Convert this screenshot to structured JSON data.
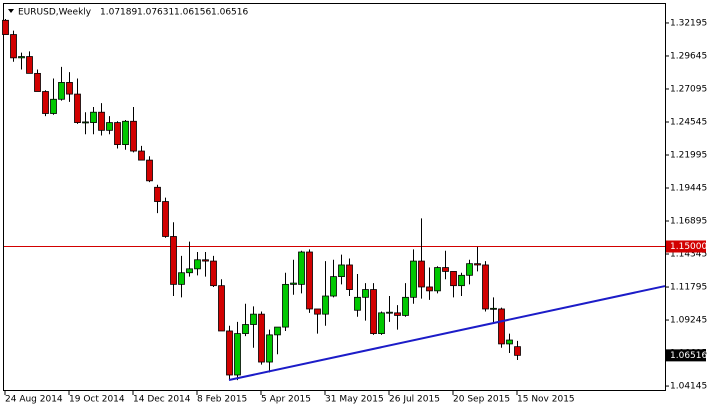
{
  "chart_data": {
    "type": "candlestick",
    "title": "EURUSD,Weekly",
    "categories": [
      "24 Aug 2014",
      null,
      null,
      null,
      null,
      null,
      null,
      null,
      "19 Oct 2014",
      null,
      null,
      null,
      null,
      null,
      null,
      null,
      "14 Dec 2014",
      null,
      null,
      null,
      null,
      null,
      null,
      null,
      "8 Feb 2015",
      null,
      null,
      null,
      null,
      null,
      null,
      null,
      "5 Apr 2015",
      null,
      null,
      null,
      null,
      null,
      null,
      null,
      "31 May 2015",
      null,
      null,
      null,
      null,
      null,
      null,
      null,
      "26 Jul 2015",
      null,
      null,
      null,
      null,
      null,
      null,
      null,
      "20 Sep 2015",
      null,
      null,
      null,
      null,
      null,
      null,
      null,
      "15 Nov 2015"
    ],
    "open": [
      1.324,
      1.313,
      1.295,
      1.296,
      1.283,
      1.269,
      1.252,
      1.263,
      1.276,
      1.267,
      1.245,
      1.245,
      1.253,
      1.239,
      1.245,
      1.228,
      1.246,
      1.223,
      1.216,
      1.195,
      1.184,
      1.157,
      1.12,
      1.129,
      1.132,
      1.139,
      1.138,
      1.119,
      1.084,
      1.05,
      1.082,
      1.089,
      1.097,
      1.06,
      1.081,
      1.087,
      1.12,
      1.12,
      1.145,
      1.101,
      1.097,
      1.111,
      1.126,
      1.135,
      1.1,
      1.11,
      1.116,
      1.082,
      1.098,
      1.098,
      1.096,
      1.11,
      1.138,
      1.118,
      1.115,
      1.133,
      1.13,
      1.119,
      1.127,
      1.136,
      1.135,
      1.101,
      1.101,
      1.074,
      1.07189
    ],
    "high": [
      1.325,
      1.316,
      1.299,
      1.3,
      1.286,
      1.27,
      1.279,
      1.288,
      1.284,
      1.279,
      1.253,
      1.257,
      1.26,
      1.25,
      1.246,
      1.247,
      1.257,
      1.227,
      1.219,
      1.197,
      1.187,
      1.168,
      1.142,
      1.153,
      1.145,
      1.145,
      1.142,
      1.124,
      1.088,
      1.091,
      1.105,
      1.103,
      1.099,
      1.085,
      1.085,
      1.129,
      1.139,
      1.146,
      1.147,
      1.101,
      1.138,
      1.139,
      1.143,
      1.14,
      1.128,
      1.121,
      1.121,
      1.099,
      1.111,
      1.104,
      1.121,
      1.147,
      1.171,
      1.133,
      1.134,
      1.146,
      1.13,
      1.129,
      1.139,
      1.149,
      1.138,
      1.11,
      1.102,
      1.082,
      1.07631
    ],
    "low": [
      1.313,
      1.292,
      1.286,
      1.284,
      1.27,
      1.25,
      1.251,
      1.262,
      1.261,
      1.244,
      1.236,
      1.236,
      1.235,
      1.236,
      1.225,
      1.224,
      1.222,
      1.216,
      1.199,
      1.175,
      1.156,
      1.111,
      1.11,
      1.126,
      1.127,
      1.126,
      1.118,
      1.084,
      1.046,
      1.046,
      1.08,
      1.071,
      1.058,
      1.052,
      1.066,
      1.084,
      1.112,
      1.113,
      1.098,
      1.082,
      1.088,
      1.11,
      1.12,
      1.111,
      1.095,
      1.092,
      1.081,
      1.081,
      1.091,
      1.085,
      1.095,
      1.105,
      1.109,
      1.108,
      1.113,
      1.124,
      1.11,
      1.111,
      1.12,
      1.13,
      1.099,
      1.09,
      1.071,
      1.067,
      1.06156
    ],
    "close": [
      1.313,
      1.295,
      1.296,
      1.283,
      1.269,
      1.252,
      1.263,
      1.276,
      1.267,
      1.245,
      1.2455,
      1.253,
      1.239,
      1.245,
      1.228,
      1.246,
      1.223,
      1.216,
      1.2,
      1.184,
      1.157,
      1.12,
      1.129,
      1.132,
      1.139,
      1.138,
      1.119,
      1.084,
      1.05,
      1.082,
      1.089,
      1.097,
      1.06,
      1.081,
      1.087,
      1.12,
      1.121,
      1.145,
      1.101,
      1.097,
      1.111,
      1.126,
      1.135,
      1.116,
      1.11,
      1.116,
      1.082,
      1.098,
      1.0985,
      1.096,
      1.11,
      1.138,
      1.118,
      1.115,
      1.133,
      1.13,
      1.119,
      1.127,
      1.136,
      1.135,
      1.101,
      1.1015,
      1.074,
      1.077,
      1.06516
    ],
    "up_color": "#00c800",
    "down_color": "#d20000",
    "wick_color": "#000000",
    "ylim": [
      1.0384,
      1.3366
    ],
    "yticks": [
      1.04145,
      1.06695,
      1.09245,
      1.11795,
      1.14345,
      1.16895,
      1.19445,
      1.21995,
      1.24545,
      1.27095,
      1.29645,
      1.32195
    ],
    "hline": {
      "value": 1.15,
      "label": "1.15000",
      "color": "#d20000"
    },
    "trendline": {
      "x": [
        28,
        82.6
      ],
      "values": [
        1.0461,
        1.1187
      ],
      "color": "#1c1cc8"
    }
  }
}
